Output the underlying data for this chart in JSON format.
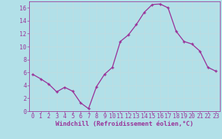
{
  "x": [
    0,
    1,
    2,
    3,
    4,
    5,
    6,
    7,
    8,
    9,
    10,
    11,
    12,
    13,
    14,
    15,
    16,
    17,
    18,
    19,
    20,
    21,
    22,
    23
  ],
  "y": [
    5.7,
    5.0,
    4.2,
    3.0,
    3.7,
    3.1,
    1.3,
    0.4,
    3.8,
    5.7,
    6.8,
    10.8,
    11.8,
    13.4,
    15.3,
    16.5,
    16.6,
    16.0,
    12.4,
    10.8,
    10.4,
    9.3,
    6.8,
    6.2
  ],
  "line_color": "#993399",
  "marker": "+",
  "marker_size": 3.5,
  "marker_linewidth": 1.0,
  "bg_color": "#b2e0e8",
  "grid_color": "#d0e8e8",
  "xlabel": "Windchill (Refroidissement éolien,°C)",
  "xlabel_color": "#993399",
  "tick_color": "#993399",
  "xlim": [
    -0.5,
    23.5
  ],
  "ylim": [
    0,
    17
  ],
  "yticks": [
    0,
    2,
    4,
    6,
    8,
    10,
    12,
    14,
    16
  ],
  "xticks": [
    0,
    1,
    2,
    3,
    4,
    5,
    6,
    7,
    8,
    9,
    10,
    11,
    12,
    13,
    14,
    15,
    16,
    17,
    18,
    19,
    20,
    21,
    22,
    23
  ],
  "xlabel_fontsize": 6.5,
  "tick_fontsize": 6.0,
  "line_width": 1.0,
  "spine_color": "#993399"
}
